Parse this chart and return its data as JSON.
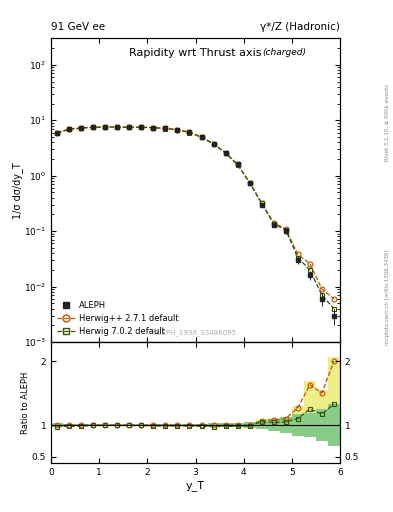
{
  "title_left": "91 GeV ee",
  "title_right": "γ*/Z (Hadronic)",
  "plot_title": "Rapidity wrt Thrust axis",
  "plot_title_sub": "(charged)",
  "ylabel_main": "1/σ dσ/dy_T",
  "ylabel_ratio": "Ratio to ALEPH",
  "xlabel": "y_T",
  "watermark": "ALEPH_1996_S3486095",
  "right_label": "mcplots.cern.ch [arXiv:1306.3436]",
  "right_label2": "Rivet 3.1.10, ≥ 600k events",
  "ylim_main": [
    0.001,
    300
  ],
  "ylim_ratio": [
    0.4,
    2.3
  ],
  "xlim": [
    0,
    6.0
  ],
  "aleph_x": [
    0.125,
    0.375,
    0.625,
    0.875,
    1.125,
    1.375,
    1.625,
    1.875,
    2.125,
    2.375,
    2.625,
    2.875,
    3.125,
    3.375,
    3.625,
    3.875,
    4.125,
    4.375,
    4.625,
    4.875,
    5.125,
    5.375,
    5.625,
    5.875
  ],
  "aleph_y": [
    6.0,
    7.0,
    7.3,
    7.5,
    7.6,
    7.6,
    7.5,
    7.5,
    7.4,
    7.2,
    6.8,
    6.1,
    5.0,
    3.8,
    2.6,
    1.6,
    0.75,
    0.3,
    0.13,
    0.1,
    0.03,
    0.016,
    0.006,
    0.003
  ],
  "aleph_yerr": [
    0.15,
    0.12,
    0.1,
    0.1,
    0.1,
    0.1,
    0.1,
    0.1,
    0.1,
    0.1,
    0.1,
    0.1,
    0.1,
    0.1,
    0.08,
    0.06,
    0.04,
    0.02,
    0.012,
    0.012,
    0.005,
    0.003,
    0.0015,
    0.001
  ],
  "aleph_color": "#222222",
  "hwpp_x": [
    0.125,
    0.375,
    0.625,
    0.875,
    1.125,
    1.375,
    1.625,
    1.875,
    2.125,
    2.375,
    2.625,
    2.875,
    3.125,
    3.375,
    3.625,
    3.875,
    4.125,
    4.375,
    4.625,
    4.875,
    5.125,
    5.375,
    5.625,
    5.875
  ],
  "hwpp_y": [
    6.0,
    7.0,
    7.3,
    7.5,
    7.6,
    7.6,
    7.5,
    7.5,
    7.4,
    7.2,
    6.8,
    6.1,
    5.0,
    3.8,
    2.6,
    1.6,
    0.75,
    0.32,
    0.14,
    0.11,
    0.038,
    0.026,
    0.009,
    0.006
  ],
  "hwpp_color": "#bb5500",
  "hwpp_label": "Herwig++ 2.7.1 default",
  "hw7_x": [
    0.125,
    0.375,
    0.625,
    0.875,
    1.125,
    1.375,
    1.625,
    1.875,
    2.125,
    2.375,
    2.625,
    2.875,
    3.125,
    3.375,
    3.625,
    3.875,
    4.125,
    4.375,
    4.625,
    4.875,
    5.125,
    5.375,
    5.625,
    5.875
  ],
  "hw7_y": [
    5.85,
    6.85,
    7.2,
    7.45,
    7.55,
    7.55,
    7.45,
    7.45,
    7.3,
    7.1,
    6.7,
    6.0,
    4.9,
    3.7,
    2.55,
    1.57,
    0.74,
    0.315,
    0.135,
    0.105,
    0.033,
    0.02,
    0.007,
    0.004
  ],
  "hw7_color": "#335500",
  "hw7_label": "Herwig 7.0.2 default",
  "hwpp_ratio": [
    1.0,
    1.0,
    1.0,
    1.0,
    1.0,
    1.0,
    1.0,
    1.0,
    1.0,
    1.0,
    1.0,
    1.0,
    1.0,
    1.0,
    1.0,
    1.0,
    1.0,
    1.07,
    1.08,
    1.1,
    1.27,
    1.63,
    1.5,
    2.0
  ],
  "hw7_ratio": [
    0.975,
    0.978,
    0.986,
    0.993,
    0.993,
    0.993,
    0.993,
    0.993,
    0.986,
    0.986,
    0.985,
    0.984,
    0.98,
    0.974,
    0.981,
    0.981,
    0.987,
    1.05,
    1.04,
    1.05,
    1.1,
    1.25,
    1.17,
    1.33
  ],
  "aleph_band_color": "#88cc88",
  "hwpp_band_color": "#eeee88",
  "bg_color": "white"
}
